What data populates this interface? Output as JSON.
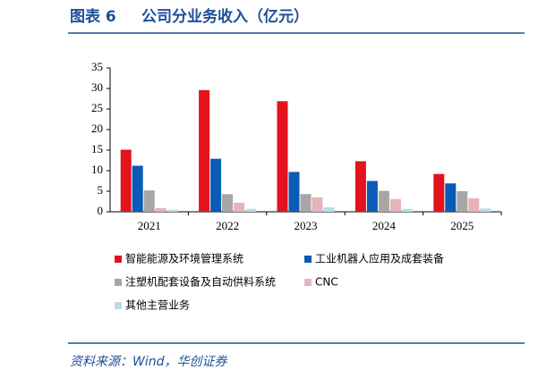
{
  "chart_data": {
    "type": "bar",
    "figure_label": "图表 6",
    "title": "公司分业务收入（亿元）",
    "source": "资料来源：Wind，华创证券",
    "categories": [
      "2021",
      "2022",
      "2023",
      "2024",
      "2025"
    ],
    "series": [
      {
        "name": "智能能源及环境管理系统",
        "color": "#e3131d",
        "values": [
          15.1,
          29.6,
          26.9,
          12.3,
          9.2
        ]
      },
      {
        "name": "工业机器人应用及成套装备",
        "color": "#0a5bb5",
        "values": [
          11.2,
          12.9,
          9.7,
          7.5,
          6.9
        ]
      },
      {
        "name": "注塑机配套设备及自动供料系统",
        "color": "#a6a6a6",
        "values": [
          5.2,
          4.3,
          4.3,
          5.1,
          5.0
        ]
      },
      {
        "name": "CNC",
        "color": "#e6b4b8",
        "values": [
          0.9,
          2.2,
          3.5,
          3.1,
          3.3
        ]
      },
      {
        "name": "其他主营业务",
        "color": "#b7dde8",
        "values": [
          0.5,
          0.7,
          1.1,
          0.7,
          0.8
        ]
      }
    ],
    "ylim": [
      0,
      35
    ],
    "yticks": [
      0,
      5,
      10,
      15,
      20,
      25,
      30,
      35
    ],
    "grid": false
  }
}
